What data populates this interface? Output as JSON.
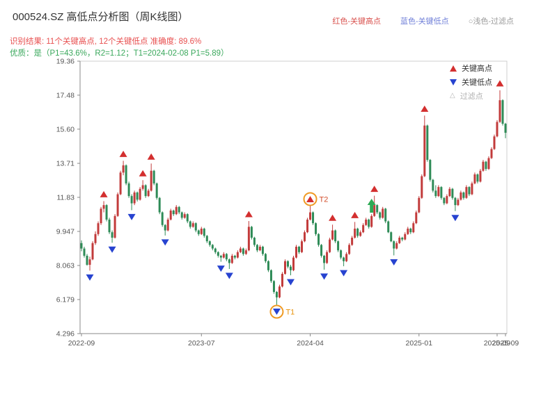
{
  "header": {
    "title": "000524.SZ 高低点分析图（周K线图）",
    "legend": [
      {
        "label": "红色-关键高点",
        "color": "#d9534f"
      },
      {
        "label": "蓝色-关键低点",
        "color": "#6f7fd8"
      },
      {
        "label": "○浅色-过滤点",
        "color": "#9a9a9a"
      }
    ],
    "result_line": "识别结果: 11个关键高点, 12个关键低点  准确度: 89.6%",
    "quality_line": "优质：是（P1=43.6%，R2=1.12；T1=2024-02-08 P1=5.89）"
  },
  "chart_data": {
    "type": "candlestick",
    "title": "000524.SZ 高低点分析图（周K线图）",
    "symbol": "000524.SZ",
    "period": "weekly",
    "ylim": [
      4.296,
      19.36
    ],
    "y_ticks": [
      {
        "v": 19.36,
        "label": "19.36"
      },
      {
        "v": 17.48,
        "label": "17.48"
      },
      {
        "v": 15.6,
        "label": "15.60"
      },
      {
        "v": 13.71,
        "label": "13.71"
      },
      {
        "v": 11.83,
        "label": "11.83"
      },
      {
        "v": 9.947,
        "label": "9.947"
      },
      {
        "v": 8.063,
        "label": "8.063"
      },
      {
        "v": 6.179,
        "label": "6.179"
      },
      {
        "v": 4.296,
        "label": "4.296"
      }
    ],
    "x_ticks": [
      {
        "i": 0,
        "label": "2022-09"
      },
      {
        "i": 43,
        "label": "2023-07"
      },
      {
        "i": 82,
        "label": "2024-04"
      },
      {
        "i": 121,
        "label": "2025-01"
      },
      {
        "i": 149,
        "label": "2025-09"
      },
      {
        "i": 152,
        "label": "2025-09"
      }
    ],
    "legend": [
      {
        "label": "关键高点",
        "type": "high"
      },
      {
        "label": "关键低点",
        "type": "low"
      },
      {
        "label": "过滤点",
        "type": "filtered"
      }
    ],
    "icons": {
      "filtered": "△"
    },
    "colors": {
      "up": "#c23b3b",
      "down": "#2e8b57",
      "high_marker": "#d32f2f",
      "low_marker": "#2743d0",
      "arrow": "#2eaa55",
      "circle": "#ef9a23",
      "t1_label": "#e8930c",
      "t2_label": "#d4502e",
      "axis": "#888888",
      "border": "#cfcfcf",
      "tick_text": "#555555"
    },
    "candles": [
      [
        9.3,
        9.45,
        8.85,
        9.0
      ],
      [
        9.0,
        9.1,
        8.5,
        8.6
      ],
      [
        8.6,
        8.7,
        8.05,
        8.1
      ],
      [
        8.1,
        8.55,
        7.78,
        8.4
      ],
      [
        8.4,
        9.4,
        8.35,
        9.3
      ],
      [
        9.3,
        9.95,
        9.2,
        9.8
      ],
      [
        9.8,
        10.5,
        9.7,
        10.4
      ],
      [
        10.4,
        11.3,
        10.3,
        11.2
      ],
      [
        11.2,
        11.62,
        11.0,
        11.4
      ],
      [
        11.4,
        11.45,
        10.5,
        10.6
      ],
      [
        10.6,
        10.7,
        9.8,
        9.9
      ],
      [
        9.9,
        10.0,
        9.32,
        9.6
      ],
      [
        9.6,
        10.9,
        9.55,
        10.8
      ],
      [
        10.8,
        12.1,
        10.75,
        12.0
      ],
      [
        12.0,
        13.3,
        11.95,
        13.2
      ],
      [
        13.2,
        13.85,
        13.05,
        13.6
      ],
      [
        13.6,
        13.65,
        12.5,
        12.6
      ],
      [
        12.6,
        12.7,
        11.8,
        11.9
      ],
      [
        11.9,
        12.0,
        11.12,
        11.5
      ],
      [
        11.5,
        12.2,
        11.4,
        12.1
      ],
      [
        12.1,
        12.15,
        11.6,
        11.7
      ],
      [
        11.7,
        12.4,
        11.65,
        12.3
      ],
      [
        12.3,
        12.78,
        12.2,
        12.5
      ],
      [
        12.5,
        12.55,
        11.8,
        11.9
      ],
      [
        11.9,
        12.3,
        11.85,
        12.2
      ],
      [
        12.2,
        13.7,
        12.15,
        13.3
      ],
      [
        13.3,
        13.35,
        12.5,
        12.6
      ],
      [
        12.6,
        12.65,
        11.7,
        11.8
      ],
      [
        11.8,
        11.85,
        10.9,
        11.0
      ],
      [
        11.0,
        11.05,
        10.2,
        10.3
      ],
      [
        10.3,
        10.35,
        9.72,
        10.0
      ],
      [
        10.0,
        10.7,
        9.95,
        10.6
      ],
      [
        10.6,
        11.2,
        10.55,
        11.1
      ],
      [
        11.1,
        11.15,
        10.8,
        10.9
      ],
      [
        10.9,
        11.4,
        10.85,
        11.3
      ],
      [
        11.3,
        11.35,
        10.9,
        11.0
      ],
      [
        11.0,
        11.05,
        10.6,
        10.7
      ],
      [
        10.7,
        11.0,
        10.65,
        10.9
      ],
      [
        10.9,
        10.95,
        10.4,
        10.5
      ],
      [
        10.5,
        10.55,
        10.1,
        10.2
      ],
      [
        10.2,
        10.5,
        10.15,
        10.4
      ],
      [
        10.4,
        10.45,
        9.9,
        10.0
      ],
      [
        10.0,
        10.05,
        9.7,
        9.8
      ],
      [
        9.8,
        10.2,
        9.75,
        10.1
      ],
      [
        10.1,
        10.15,
        9.6,
        9.7
      ],
      [
        9.7,
        9.75,
        9.3,
        9.4
      ],
      [
        9.4,
        9.45,
        9.1,
        9.2
      ],
      [
        9.2,
        9.25,
        8.9,
        9.0
      ],
      [
        9.0,
        9.05,
        8.7,
        8.8
      ],
      [
        8.8,
        8.85,
        8.5,
        8.6
      ],
      [
        8.6,
        8.65,
        8.27,
        8.5
      ],
      [
        8.5,
        8.8,
        8.45,
        8.7
      ],
      [
        8.7,
        8.75,
        8.3,
        8.4
      ],
      [
        8.4,
        8.45,
        7.87,
        8.2
      ],
      [
        8.2,
        8.7,
        8.15,
        8.6
      ],
      [
        8.6,
        8.65,
        8.4,
        8.5
      ],
      [
        8.5,
        8.9,
        8.45,
        8.8
      ],
      [
        8.8,
        9.1,
        8.75,
        9.0
      ],
      [
        9.0,
        9.05,
        8.6,
        8.7
      ],
      [
        8.7,
        9.0,
        8.65,
        8.9
      ],
      [
        8.9,
        10.52,
        8.85,
        10.2
      ],
      [
        10.2,
        10.25,
        9.5,
        9.6
      ],
      [
        9.6,
        9.65,
        9.1,
        9.2
      ],
      [
        9.2,
        9.25,
        8.8,
        8.9
      ],
      [
        8.9,
        9.2,
        8.85,
        9.1
      ],
      [
        9.1,
        9.15,
        8.6,
        8.7
      ],
      [
        8.7,
        8.75,
        8.2,
        8.3
      ],
      [
        8.3,
        8.35,
        7.7,
        7.8
      ],
      [
        7.8,
        7.85,
        7.1,
        7.2
      ],
      [
        7.2,
        7.25,
        6.5,
        6.6
      ],
      [
        6.6,
        6.65,
        5.89,
        6.3
      ],
      [
        6.3,
        7.0,
        6.25,
        6.9
      ],
      [
        6.9,
        7.7,
        6.85,
        7.6
      ],
      [
        7.6,
        8.4,
        7.55,
        8.3
      ],
      [
        8.3,
        8.35,
        7.9,
        8.0
      ],
      [
        8.0,
        8.1,
        7.52,
        7.8
      ],
      [
        7.8,
        8.6,
        7.75,
        8.5
      ],
      [
        8.5,
        9.2,
        8.45,
        9.1
      ],
      [
        9.1,
        9.15,
        8.7,
        8.8
      ],
      [
        8.8,
        9.5,
        8.75,
        9.4
      ],
      [
        9.4,
        10.0,
        9.35,
        9.9
      ],
      [
        9.9,
        10.7,
        9.85,
        10.6
      ],
      [
        10.6,
        11.35,
        10.55,
        11.0
      ],
      [
        11.0,
        11.05,
        10.3,
        10.4
      ],
      [
        10.4,
        10.45,
        9.7,
        9.8
      ],
      [
        9.8,
        9.85,
        9.1,
        9.2
      ],
      [
        9.2,
        9.25,
        8.5,
        8.6
      ],
      [
        8.6,
        8.65,
        7.83,
        8.2
      ],
      [
        8.2,
        8.9,
        8.15,
        8.8
      ],
      [
        8.8,
        9.6,
        8.75,
        9.5
      ],
      [
        9.5,
        10.32,
        9.45,
        10.0
      ],
      [
        10.0,
        10.05,
        9.3,
        9.4
      ],
      [
        9.4,
        9.45,
        8.8,
        8.9
      ],
      [
        8.9,
        8.95,
        8.4,
        8.5
      ],
      [
        8.5,
        8.55,
        8.02,
        8.3
      ],
      [
        8.3,
        8.8,
        8.25,
        8.7
      ],
      [
        8.7,
        9.3,
        8.65,
        9.2
      ],
      [
        9.2,
        9.7,
        9.15,
        9.6
      ],
      [
        9.6,
        10.47,
        9.55,
        10.1
      ],
      [
        10.1,
        10.15,
        9.6,
        9.7
      ],
      [
        9.7,
        10.0,
        9.65,
        9.9
      ],
      [
        9.9,
        10.4,
        9.85,
        10.3
      ],
      [
        10.3,
        10.7,
        10.25,
        10.6
      ],
      [
        10.6,
        10.65,
        10.1,
        10.2
      ],
      [
        10.2,
        10.9,
        10.15,
        10.8
      ],
      [
        10.8,
        11.92,
        10.75,
        11.4
      ],
      [
        11.4,
        11.45,
        10.9,
        11.0
      ],
      [
        11.0,
        11.05,
        10.6,
        10.7
      ],
      [
        10.7,
        11.3,
        10.65,
        11.2
      ],
      [
        11.2,
        11.25,
        10.4,
        10.5
      ],
      [
        10.5,
        10.55,
        9.85,
        9.9
      ],
      [
        9.9,
        9.95,
        9.35,
        9.4
      ],
      [
        9.4,
        9.45,
        8.62,
        9.0
      ],
      [
        9.0,
        9.4,
        8.95,
        9.3
      ],
      [
        9.3,
        9.7,
        9.25,
        9.6
      ],
      [
        9.6,
        9.65,
        9.4,
        9.5
      ],
      [
        9.5,
        9.9,
        9.45,
        9.8
      ],
      [
        9.8,
        10.2,
        9.75,
        10.1
      ],
      [
        10.1,
        10.15,
        9.8,
        9.9
      ],
      [
        9.9,
        10.5,
        9.85,
        10.4
      ],
      [
        10.4,
        11.1,
        10.35,
        11.0
      ],
      [
        11.0,
        11.9,
        10.95,
        11.8
      ],
      [
        11.8,
        13.1,
        11.75,
        13.0
      ],
      [
        13.0,
        16.35,
        12.95,
        15.8
      ],
      [
        15.8,
        15.85,
        13.8,
        13.9
      ],
      [
        13.9,
        13.95,
        12.7,
        12.8
      ],
      [
        12.8,
        12.85,
        12.1,
        12.2
      ],
      [
        12.2,
        12.5,
        11.8,
        11.9
      ],
      [
        11.9,
        12.5,
        11.85,
        12.4
      ],
      [
        12.4,
        12.45,
        11.7,
        11.8
      ],
      [
        11.8,
        11.85,
        11.4,
        11.5
      ],
      [
        11.5,
        12.0,
        11.45,
        11.9
      ],
      [
        11.9,
        12.4,
        11.85,
        12.3
      ],
      [
        12.3,
        12.35,
        11.7,
        11.8
      ],
      [
        11.8,
        11.85,
        11.07,
        11.4
      ],
      [
        11.4,
        11.8,
        11.35,
        11.7
      ],
      [
        11.7,
        12.2,
        11.65,
        12.1
      ],
      [
        12.1,
        12.15,
        11.7,
        11.8
      ],
      [
        11.8,
        12.5,
        11.75,
        12.4
      ],
      [
        12.4,
        12.45,
        11.9,
        12.0
      ],
      [
        12.0,
        12.7,
        11.95,
        12.6
      ],
      [
        12.6,
        13.2,
        12.55,
        13.1
      ],
      [
        13.1,
        13.15,
        12.6,
        12.7
      ],
      [
        12.7,
        13.4,
        12.65,
        13.3
      ],
      [
        13.3,
        13.9,
        13.25,
        13.8
      ],
      [
        13.8,
        13.85,
        13.3,
        13.4
      ],
      [
        13.4,
        14.1,
        13.35,
        14.0
      ],
      [
        14.0,
        14.6,
        13.95,
        14.5
      ],
      [
        14.5,
        15.3,
        14.45,
        15.2
      ],
      [
        15.2,
        16.1,
        15.15,
        16.0
      ],
      [
        16.0,
        17.75,
        15.95,
        17.2
      ],
      [
        17.2,
        17.25,
        15.8,
        15.9
      ],
      [
        15.9,
        15.95,
        15.1,
        15.4
      ]
    ],
    "markers": [
      {
        "type": "high",
        "i": 8,
        "price": 11.62
      },
      {
        "type": "high",
        "i": 15,
        "price": 13.85
      },
      {
        "type": "high",
        "i": 22,
        "price": 12.78
      },
      {
        "type": "high",
        "i": 25,
        "price": 13.7
      },
      {
        "type": "high",
        "i": 60,
        "price": 10.52
      },
      {
        "type": "high",
        "i": 82,
        "price": 11.35,
        "label": "T2",
        "circled": true
      },
      {
        "type": "high",
        "i": 90,
        "price": 10.32
      },
      {
        "type": "high",
        "i": 98,
        "price": 10.47
      },
      {
        "type": "high",
        "i": 105,
        "price": 11.92
      },
      {
        "type": "high",
        "i": 123,
        "price": 16.35
      },
      {
        "type": "high",
        "i": 150,
        "price": 17.75
      },
      {
        "type": "low",
        "i": 3,
        "price": 7.78
      },
      {
        "type": "low",
        "i": 11,
        "price": 9.32
      },
      {
        "type": "low",
        "i": 18,
        "price": 11.12
      },
      {
        "type": "low",
        "i": 30,
        "price": 9.72
      },
      {
        "type": "low",
        "i": 50,
        "price": 8.27
      },
      {
        "type": "low",
        "i": 53,
        "price": 7.87
      },
      {
        "type": "low",
        "i": 70,
        "price": 5.89,
        "label": "T1",
        "circled": true
      },
      {
        "type": "low",
        "i": 75,
        "price": 7.52
      },
      {
        "type": "low",
        "i": 87,
        "price": 7.83
      },
      {
        "type": "low",
        "i": 94,
        "price": 8.02
      },
      {
        "type": "low",
        "i": 112,
        "price": 8.62
      },
      {
        "type": "low",
        "i": 134,
        "price": 11.07
      },
      {
        "type": "arrow",
        "i": 104,
        "price": 11.75
      }
    ]
  }
}
